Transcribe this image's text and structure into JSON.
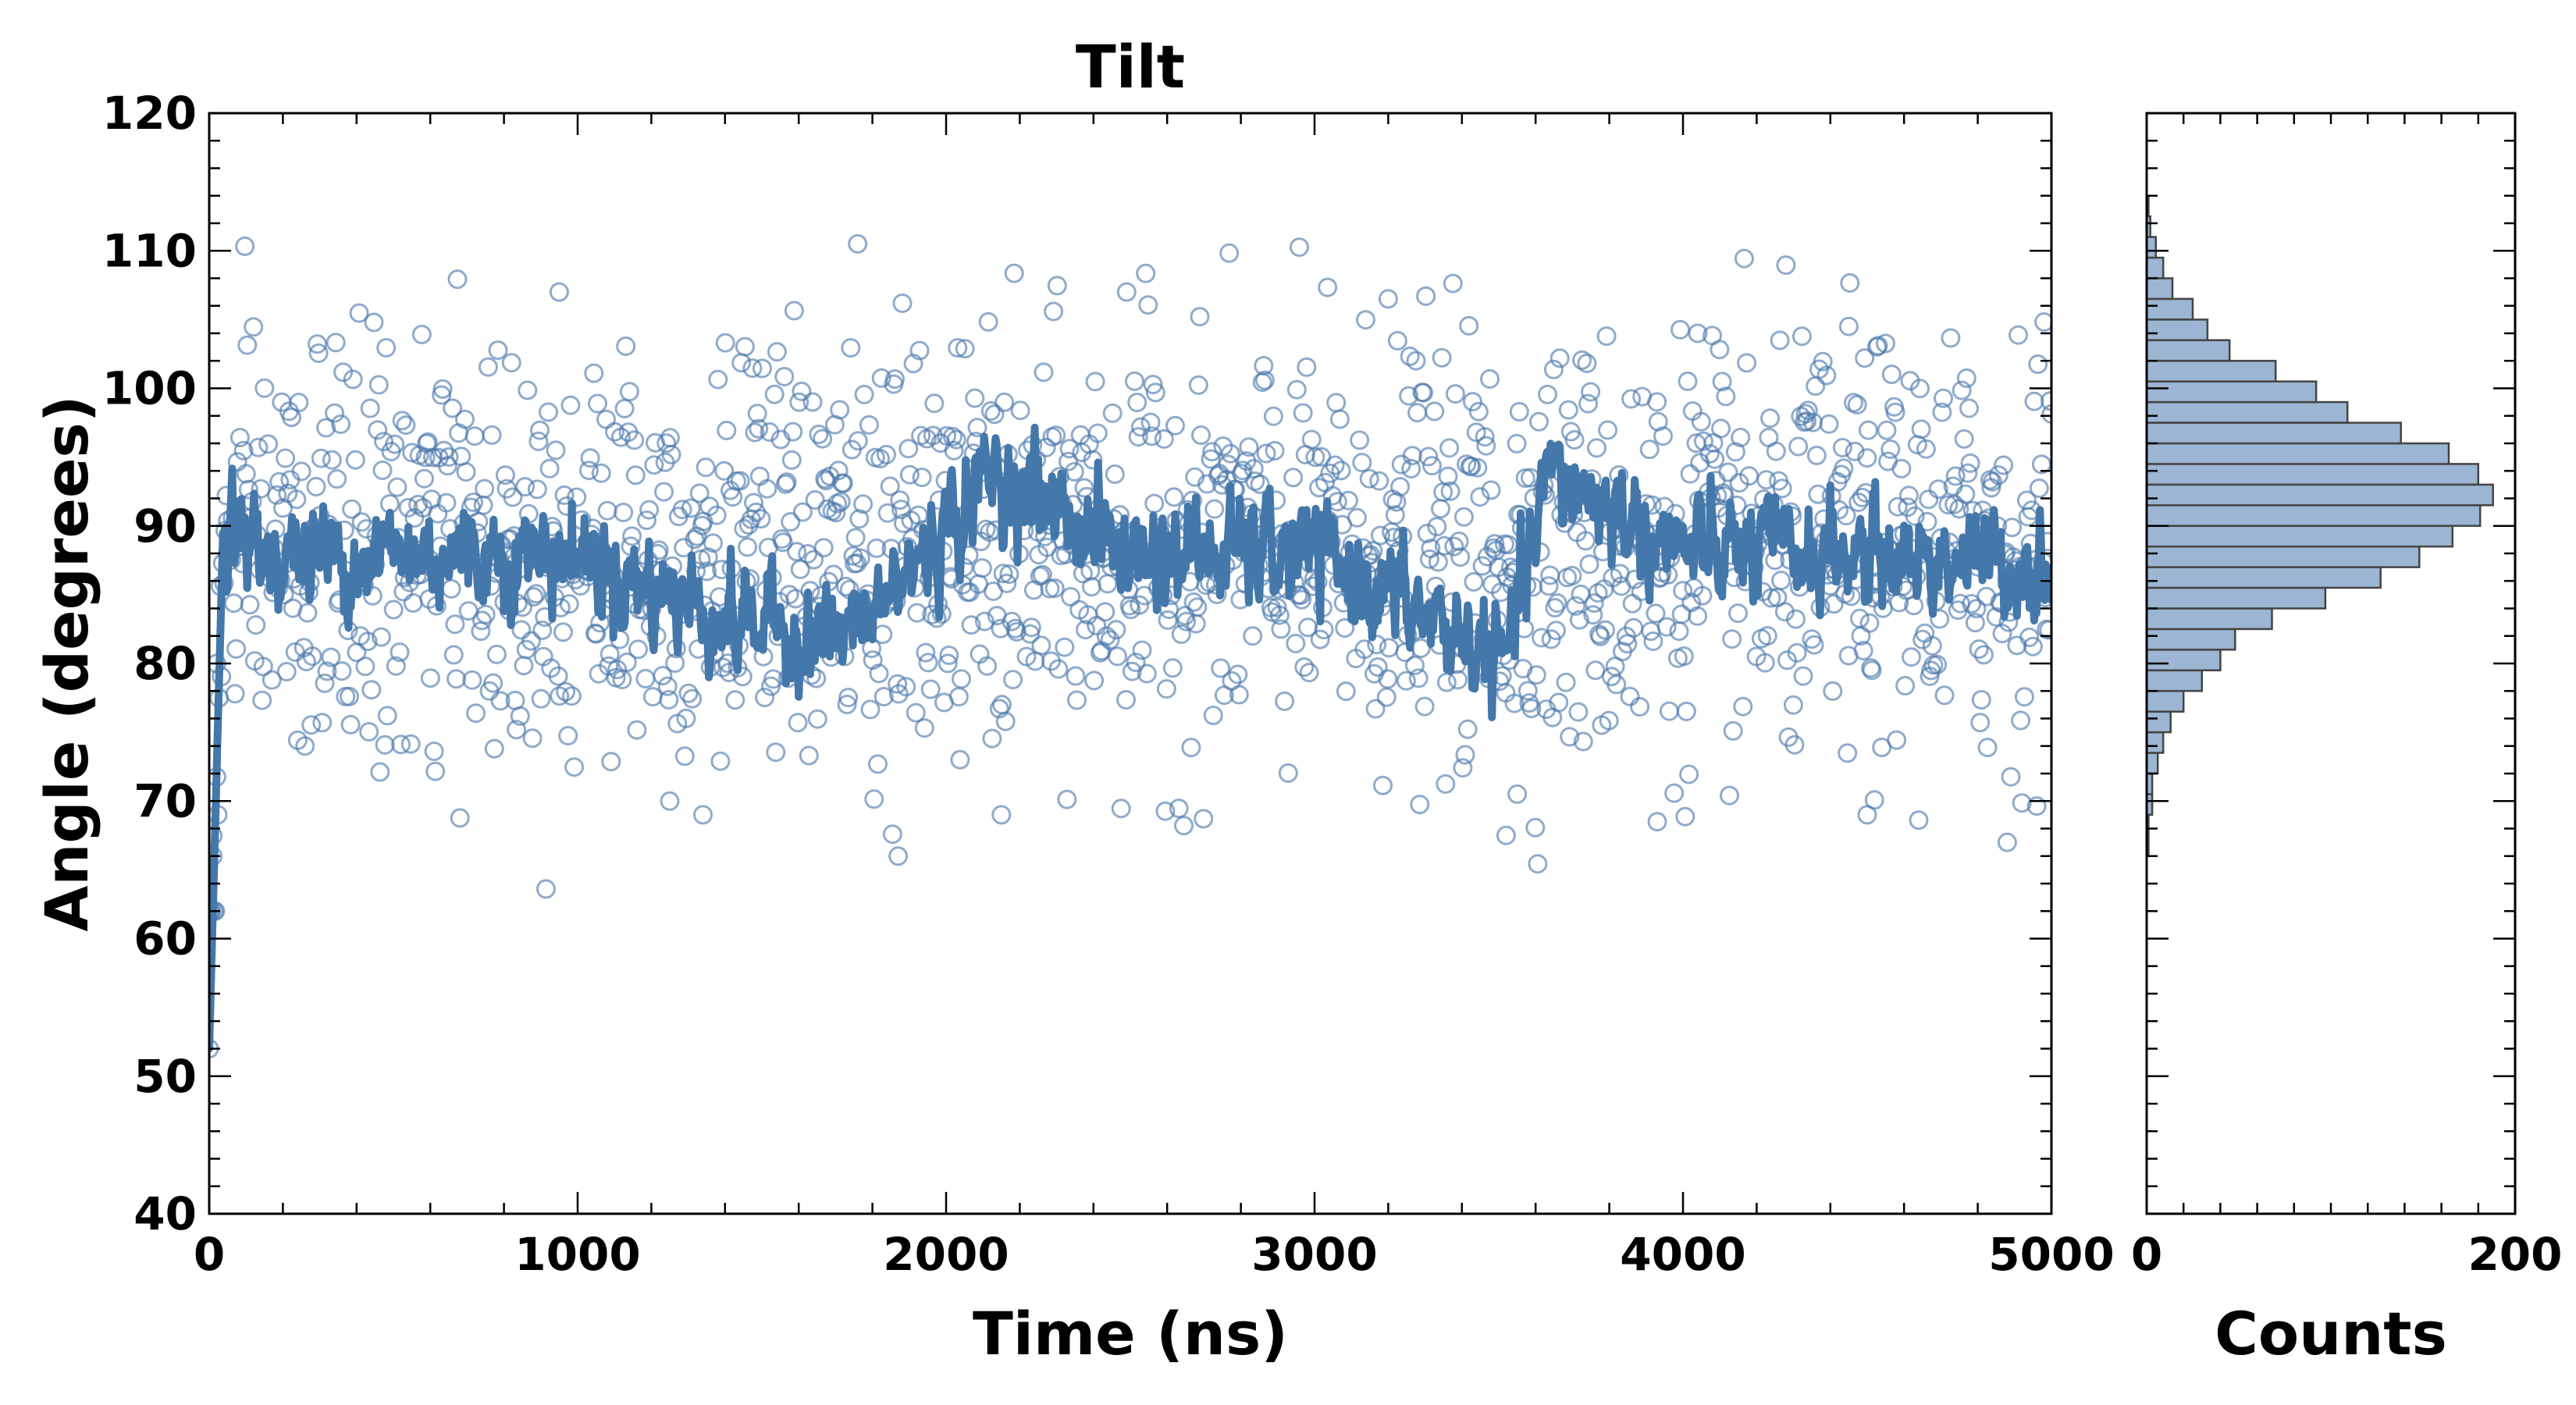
{
  "chart_data": [
    {
      "type": "scatter",
      "title": "Tilt",
      "xlabel": "Time (ns)",
      "ylabel": "Angle (degrees)",
      "xlim": [
        0,
        5000
      ],
      "ylim": [
        40,
        120
      ],
      "x_ticks": [
        "0",
        "1000",
        "2000",
        "3000",
        "4000",
        "5000"
      ],
      "y_ticks": [
        "40",
        "50",
        "60",
        "70",
        "80",
        "90",
        "100",
        "110",
        "120"
      ],
      "grid": false,
      "colors": {
        "marker": "#4a78ab",
        "line": "#4477aa"
      },
      "series": [
        {
          "kind": "scatter",
          "marker": "open-circle",
          "n_points": 1500,
          "mean": 88,
          "std": 7.5,
          "x_range": [
            0,
            5000
          ],
          "sample_points": [
            [
              0,
              52
            ],
            [
              10,
              66
            ],
            [
              20,
              80
            ],
            [
              50,
              88
            ],
            [
              260,
              74
            ],
            [
              950,
              107
            ],
            [
              1250,
              70
            ],
            [
              1340,
              69
            ],
            [
              1760,
              110.5
            ],
            [
              1870,
              66
            ],
            [
              2150,
              69
            ],
            [
              2490,
              107
            ],
            [
              3200,
              106.5
            ],
            [
              3520,
              67.5
            ],
            [
              3550,
              70.5
            ],
            [
              3930,
              68.5
            ],
            [
              4040,
              104
            ],
            [
              4450,
              104.5
            ],
            [
              4500,
              69
            ],
            [
              4880,
              67
            ]
          ]
        },
        {
          "kind": "line",
          "description": "running average",
          "mean": 88,
          "fluctuation": 3.5,
          "start_value": 52,
          "x_range": [
            0,
            5000
          ],
          "sample_points": [
            [
              0,
              52
            ],
            [
              20,
              72
            ],
            [
              40,
              92
            ],
            [
              100,
              88
            ],
            [
              500,
              88
            ],
            [
              1000,
              88
            ],
            [
              1430,
              83
            ],
            [
              1750,
              82
            ],
            [
              2130,
              94
            ],
            [
              2500,
              88
            ],
            [
              3000,
              88
            ],
            [
              3390,
              82
            ],
            [
              3520,
              80
            ],
            [
              3640,
              94
            ],
            [
              4000,
              88
            ],
            [
              4500,
              88
            ],
            [
              5000,
              87
            ]
          ]
        }
      ]
    },
    {
      "type": "bar",
      "orientation": "horizontal",
      "xlabel": "Counts",
      "xlim": [
        0,
        200
      ],
      "x_ticks": [
        "0",
        "200"
      ],
      "ylim": [
        40,
        120
      ],
      "bin_width": 1.5,
      "bins": [
        [
          66.0,
          1
        ],
        [
          67.5,
          1
        ],
        [
          69.0,
          3
        ],
        [
          70.5,
          3
        ],
        [
          72.0,
          6
        ],
        [
          73.5,
          9
        ],
        [
          75.0,
          13
        ],
        [
          76.5,
          20
        ],
        [
          78.0,
          30
        ],
        [
          79.5,
          40
        ],
        [
          81.0,
          48
        ],
        [
          82.5,
          68
        ],
        [
          84.0,
          97
        ],
        [
          85.5,
          127
        ],
        [
          87.0,
          148
        ],
        [
          88.5,
          166
        ],
        [
          90.0,
          181
        ],
        [
          91.5,
          188
        ],
        [
          93.0,
          180
        ],
        [
          94.5,
          164
        ],
        [
          96.0,
          138
        ],
        [
          97.5,
          109
        ],
        [
          99.0,
          92
        ],
        [
          100.5,
          70
        ],
        [
          102.0,
          45
        ],
        [
          103.5,
          33
        ],
        [
          105.0,
          25
        ],
        [
          106.5,
          14
        ],
        [
          108.0,
          9
        ],
        [
          109.5,
          5
        ],
        [
          111.0,
          2
        ],
        [
          112.5,
          1
        ]
      ],
      "colors": {
        "fill": "#9bb5d2",
        "stroke": "#444444"
      }
    }
  ]
}
